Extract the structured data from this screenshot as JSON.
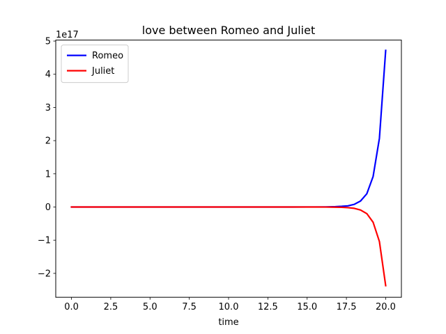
{
  "chart_data": {
    "type": "line",
    "title": "love between Romeo and Juliet",
    "xlabel": "time",
    "ylabel": "",
    "offset_text": "1e17",
    "xlim": [
      -1,
      21
    ],
    "ylim": [
      -2.72,
      5.03
    ],
    "x_ticks": [
      0,
      2.5,
      5,
      7.5,
      10,
      12.5,
      15,
      17.5,
      20
    ],
    "x_tick_labels": [
      "0.0",
      "2.5",
      "5.0",
      "7.5",
      "10.0",
      "12.5",
      "15.0",
      "17.5",
      "20.0"
    ],
    "y_ticks": [
      -2,
      -1,
      0,
      1,
      2,
      3,
      4,
      5
    ],
    "y_tick_labels": [
      "−2",
      "−1",
      "0",
      "1",
      "2",
      "3",
      "4",
      "5"
    ],
    "legend_position": "top-left",
    "grid": false,
    "series": [
      {
        "name": "Romeo",
        "color": "#0000ff",
        "x": [
          0,
          1,
          2,
          3,
          4,
          5,
          6,
          7,
          8,
          9,
          10,
          11,
          12,
          13,
          14,
          15,
          15.6,
          16.2,
          16.8,
          17.2,
          17.6,
          18.0,
          18.4,
          18.8,
          19.2,
          19.6,
          20.0
        ],
        "values": [
          0,
          0,
          0,
          0,
          0,
          0,
          0,
          0,
          0,
          0,
          0,
          0,
          0,
          0,
          0,
          0.0005,
          0.001,
          0.003,
          0.01,
          0.02,
          0.035,
          0.08,
          0.18,
          0.4,
          0.92,
          2.07,
          4.72
        ]
      },
      {
        "name": "Juliet",
        "color": "#ff0000",
        "x": [
          0,
          1,
          2,
          3,
          4,
          5,
          6,
          7,
          8,
          9,
          10,
          11,
          12,
          13,
          14,
          15,
          15.6,
          16.2,
          16.8,
          17.2,
          17.6,
          18.0,
          18.4,
          18.8,
          19.2,
          19.6,
          20.0
        ],
        "values": [
          0,
          0,
          0,
          0,
          0,
          0,
          0,
          0,
          0,
          0,
          0,
          0,
          0,
          0,
          0,
          -0.0003,
          -0.0005,
          -0.0015,
          -0.005,
          -0.01,
          -0.02,
          -0.04,
          -0.09,
          -0.2,
          -0.46,
          -1.04,
          -2.37
        ]
      }
    ]
  }
}
